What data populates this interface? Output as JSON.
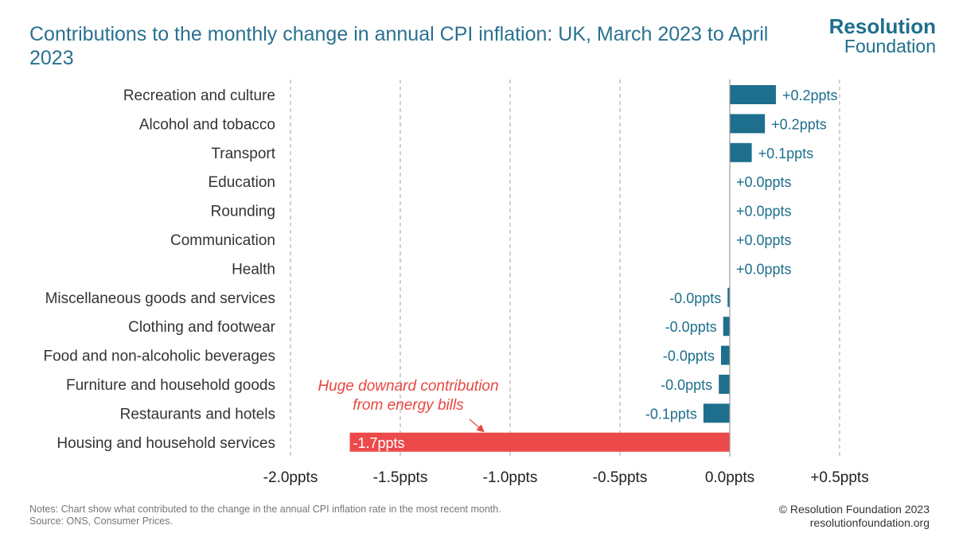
{
  "header": {
    "title": "Contributions to the monthly change in annual CPI inflation: UK, March 2023 to April 2023"
  },
  "logo": {
    "line1": "Resolution",
    "line2": "Foundation"
  },
  "footer": {
    "notes": "Notes: Chart show what contributed to the change in the annual CPI inflation rate in the most recent month.",
    "source": "Source: ONS, Consumer Prices.",
    "copyright": "© Resolution Foundation 2023",
    "website": "resolutionfoundation.org"
  },
  "chart_data": {
    "type": "bar",
    "orientation": "horizontal",
    "title": "Contributions to the monthly change in annual CPI inflation: UK, March 2023 to April 2023",
    "xlim": [
      -2.0,
      0.5
    ],
    "xticks": [
      -2.0,
      -1.5,
      -1.0,
      -0.5,
      0.0,
      0.5
    ],
    "xtick_labels": [
      "-2.0ppts",
      "-1.5ppts",
      "-1.0ppts",
      "-0.5ppts",
      "0.0ppts",
      "+0.5ppts"
    ],
    "grid": "vertical dashed",
    "categories": [
      "Recreation and culture",
      "Alcohol and tobacco",
      "Transport",
      "Education",
      "Rounding",
      "Communication",
      "Health",
      "Miscellaneous goods and services",
      "Clothing and footwear",
      "Food and non-alcoholic beverages",
      "Furniture and household goods",
      "Restaurants and hotels",
      "Housing and household services"
    ],
    "values": [
      0.21,
      0.16,
      0.1,
      0.0,
      0.0,
      0.0,
      0.0,
      -0.01,
      -0.03,
      -0.04,
      -0.05,
      -0.12,
      -1.73
    ],
    "labels": [
      "+0.2ppts",
      "+0.2ppts",
      "+0.1ppts",
      "+0.0ppts",
      "+0.0ppts",
      "+0.0ppts",
      "+0.0ppts",
      "-0.0ppts",
      "-0.0ppts",
      "-0.0ppts",
      "-0.0ppts",
      "-0.1ppts",
      "-1.7ppts"
    ],
    "highlight_index": 12,
    "colors": {
      "bar": "#1e6f8d",
      "highlight": "#ec4a4a",
      "annotation": "#e8473f",
      "grid": "#a0a0a0",
      "axis": "#999999"
    },
    "annotation": {
      "lines": [
        "Huge downard contribution",
        "from energy bills"
      ],
      "target_index": 12
    }
  }
}
